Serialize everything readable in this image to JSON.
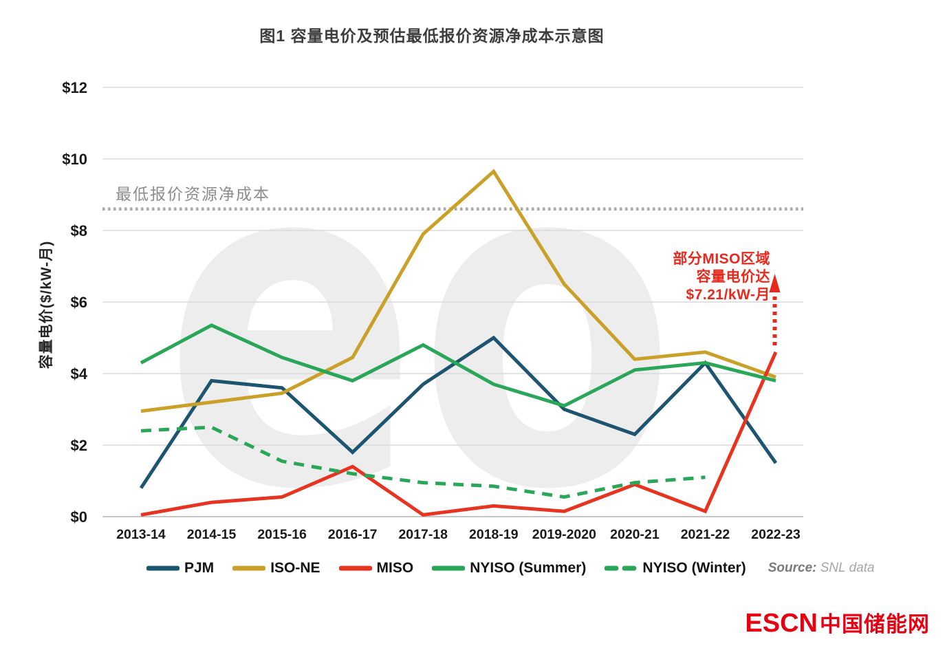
{
  "chart_data": {
    "type": "line",
    "title": "图1 容量电价及预估最低报价资源净成本示意图",
    "ylabel": "容量电价($/kW-月)",
    "xlabel": "",
    "ylim": [
      0,
      12
    ],
    "y_ticks": [
      0,
      2,
      4,
      6,
      8,
      10,
      12
    ],
    "y_tick_labels": [
      "$0",
      "$2",
      "$4",
      "$6",
      "$8",
      "$10",
      "$12"
    ],
    "grid": "horizontal",
    "legend_position": "bottom",
    "categories": [
      "2013-14",
      "2014-15",
      "2015-16",
      "2016-17",
      "2017-18",
      "2018-19",
      "2019-2020",
      "2020-21",
      "2021-22",
      "2022-23"
    ],
    "series": [
      {
        "name": "PJM",
        "color": "#1d5470",
        "style": "solid",
        "values": [
          0.8,
          3.8,
          3.6,
          1.8,
          3.7,
          5.0,
          3.0,
          2.3,
          4.3,
          1.5
        ]
      },
      {
        "name": "ISO-NE",
        "color": "#c9a128",
        "style": "solid",
        "values": [
          2.95,
          3.2,
          3.45,
          4.45,
          7.9,
          9.65,
          6.5,
          4.4,
          4.6,
          3.9
        ]
      },
      {
        "name": "MISO",
        "color": "#e63420",
        "style": "solid",
        "values": [
          0.05,
          0.4,
          0.55,
          1.4,
          0.05,
          0.3,
          0.15,
          0.9,
          0.15,
          4.6
        ]
      },
      {
        "name": "NYISO (Summer)",
        "color": "#2aa658",
        "style": "solid",
        "values": [
          4.3,
          5.35,
          4.45,
          3.8,
          4.8,
          3.7,
          3.1,
          4.1,
          4.3,
          3.8
        ]
      },
      {
        "name": "NYISO (Winter)",
        "color": "#2aa658",
        "style": "dashed",
        "values": [
          2.4,
          2.5,
          1.55,
          1.2,
          0.95,
          0.85,
          0.55,
          0.95,
          1.1,
          null
        ]
      }
    ],
    "reference_line": {
      "value": 8.6,
      "label": "最低报价资源净成本",
      "color": "#a8a8a8",
      "style": "dotted"
    },
    "annotation": {
      "lines": [
        "部分MISO区域",
        "容量电价达",
        "$7.21/kW-月"
      ],
      "color": "#e8291c"
    }
  },
  "source": {
    "prefix": "Source:",
    "text": "SNL data"
  },
  "watermark_text": "eo",
  "footer_logo": {
    "escn": "ESCN",
    "site_name": "中国储能网",
    "color": "#e60012"
  }
}
